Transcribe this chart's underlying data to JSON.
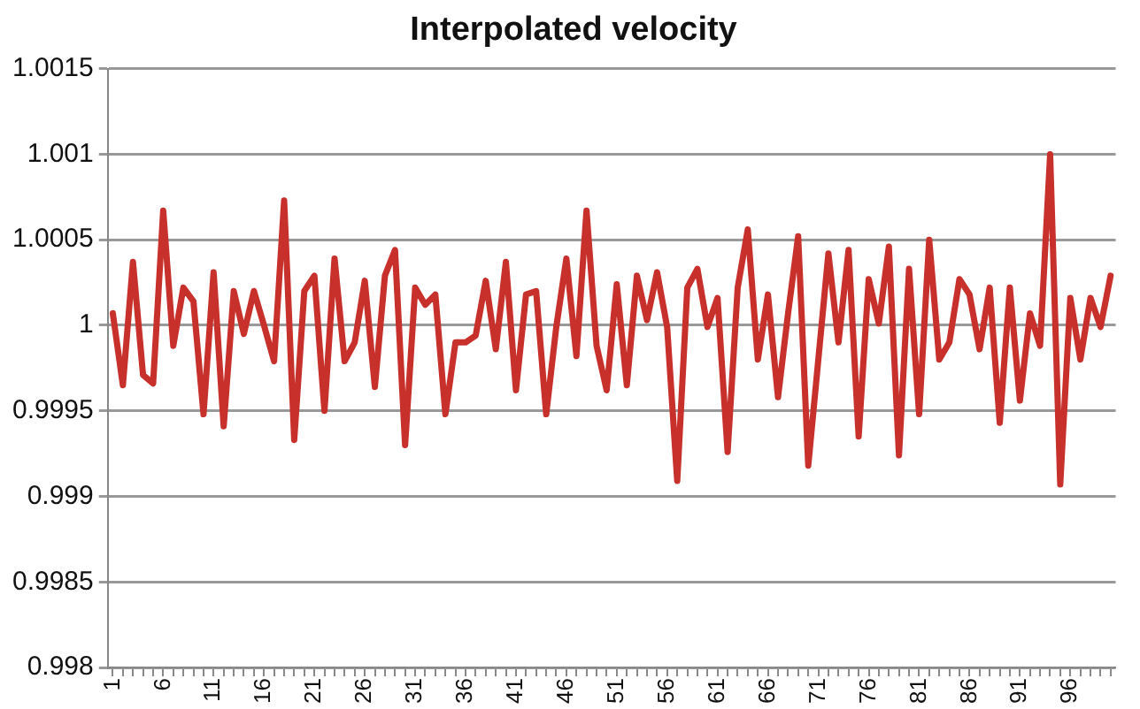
{
  "chart_data": {
    "type": "line",
    "title": "Interpolated velocity",
    "categories": [
      "1",
      null,
      null,
      null,
      null,
      "6",
      null,
      null,
      null,
      null,
      "11",
      null,
      null,
      null,
      null,
      "16",
      null,
      null,
      null,
      null,
      "21",
      null,
      null,
      null,
      null,
      "26",
      null,
      null,
      null,
      null,
      "31",
      null,
      null,
      null,
      null,
      "36",
      null,
      null,
      null,
      null,
      "41",
      null,
      null,
      null,
      null,
      "46",
      null,
      null,
      null,
      null,
      "51",
      null,
      null,
      null,
      null,
      "56",
      null,
      null,
      null,
      null,
      "61",
      null,
      null,
      null,
      null,
      "66",
      null,
      null,
      null,
      null,
      "71",
      null,
      null,
      null,
      null,
      "76",
      null,
      null,
      null,
      null,
      "81",
      null,
      null,
      null,
      null,
      "86",
      null,
      null,
      null,
      null,
      "91",
      null,
      null,
      null,
      null,
      "96",
      null,
      null,
      null,
      null
    ],
    "series": [
      {
        "color": "#c8302c",
        "values": [
          1.00007,
          0.99965,
          1.00037,
          0.99971,
          0.99966,
          1.00067,
          0.99988,
          1.00022,
          1.00014,
          0.99948,
          1.00031,
          0.99941,
          1.0002,
          0.99995,
          1.0002,
          1.0,
          0.99979,
          1.00073,
          0.99933,
          1.0002,
          1.00029,
          0.9995,
          1.00039,
          0.99979,
          0.9999,
          1.00026,
          0.99964,
          1.00029,
          1.00044,
          0.9993,
          1.00022,
          1.00012,
          1.00018,
          0.99948,
          0.9999,
          0.9999,
          0.99994,
          1.00026,
          0.99986,
          1.00037,
          0.99962,
          1.00018,
          1.0002,
          0.99948,
          0.99999,
          1.00039,
          0.99982,
          1.00067,
          0.99988,
          0.99962,
          1.00024,
          0.99965,
          1.00029,
          1.00003,
          1.00031,
          0.99999,
          0.99909,
          1.00022,
          1.00033,
          0.99999,
          1.00016,
          0.99926,
          1.00022,
          1.00056,
          0.9998,
          1.00018,
          0.99958,
          1.00007,
          1.00052,
          0.99918,
          0.9998,
          1.00042,
          0.9999,
          1.00044,
          0.99935,
          1.00027,
          1.00001,
          1.00046,
          0.99924,
          1.00033,
          0.99948,
          1.0005,
          0.9998,
          0.9999,
          1.00027,
          1.00018,
          0.99986,
          1.00022,
          0.99943,
          1.00022,
          0.99956,
          1.00007,
          0.99988,
          1.001,
          0.99907,
          1.00016,
          0.9998,
          1.00016,
          0.99999,
          1.00029
        ]
      }
    ],
    "ylim": [
      0.998,
      1.0015
    ],
    "yticks": [
      0.998,
      0.9985,
      0.999,
      0.9995,
      1,
      1.0005,
      1.001,
      1.0015
    ],
    "grid": "y",
    "legend": false,
    "marker": "none",
    "line_style": "solid"
  }
}
